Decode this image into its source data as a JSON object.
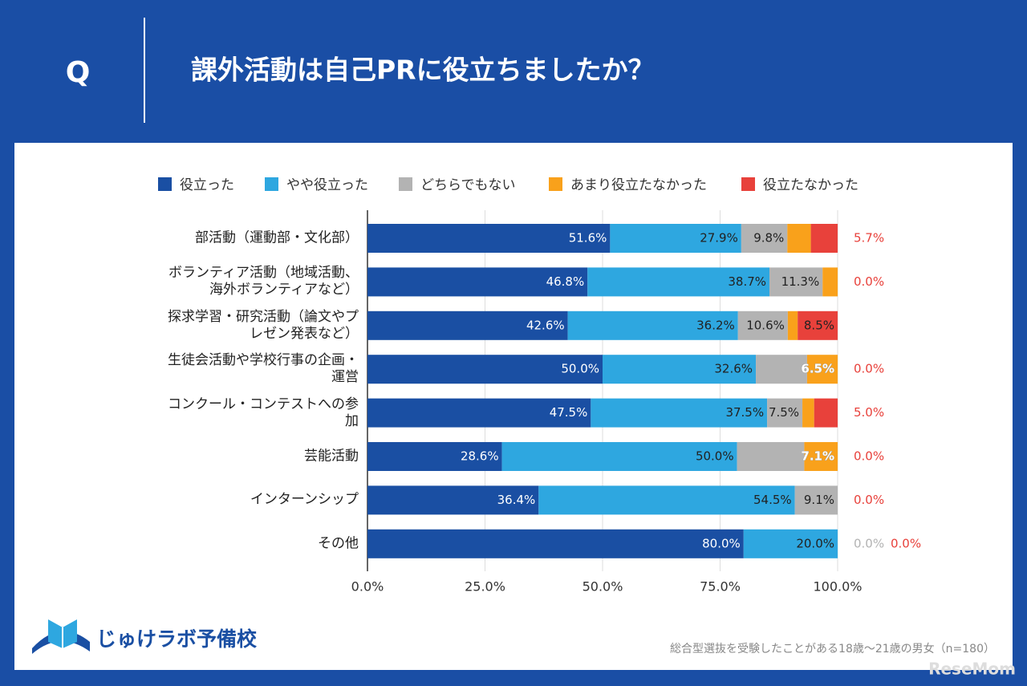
{
  "header": {
    "q": "Q",
    "title": "課外活動は自己PRに役立ちましたか？"
  },
  "chart_data": {
    "type": "bar",
    "orientation": "horizontal",
    "stacked": true,
    "categories": [
      "部活動（運動部・文化部）",
      "ボランティア活動（地域活動、\n海外ボランティアなど）",
      "探求学習・研究活動（論文やプ\nレゼン発表など）",
      "生徒会活動や学校行事の企画・\n運営",
      "コンクール・コンテストへの参\n加",
      "芸能活動",
      "インターンシップ",
      "その他"
    ],
    "series": [
      {
        "name": "役立った",
        "color": "#1a4fa3",
        "values": [
          51.6,
          46.8,
          42.6,
          50.0,
          47.5,
          28.6,
          36.4,
          80.0
        ],
        "value_labels": [
          "51.6%",
          "46.8%",
          "42.6%",
          "50.0%",
          "47.5%",
          "28.6%",
          "36.4%",
          "80.0%"
        ]
      },
      {
        "name": "やや役立った",
        "color": "#2ea7e0",
        "values": [
          27.9,
          38.7,
          36.2,
          32.6,
          37.5,
          50.0,
          54.5,
          20.0
        ],
        "value_labels": [
          "27.9%",
          "38.7%",
          "36.2%",
          "32.6%",
          "37.5%",
          "50.0%",
          "54.5%",
          "20.0%"
        ]
      },
      {
        "name": "どちらでもない",
        "color": "#b3b3b3",
        "values": [
          9.8,
          11.3,
          10.6,
          10.9,
          7.5,
          14.3,
          9.1,
          0.0
        ],
        "value_labels": [
          "9.8%",
          "11.3%",
          "10.6%",
          null,
          "7.5%",
          null,
          "9.1%",
          "0.0%"
        ]
      },
      {
        "name": "あまり役立たなかった",
        "color": "#f9a11b",
        "values": [
          5.0,
          3.2,
          2.1,
          6.5,
          2.5,
          7.1,
          0,
          0
        ],
        "value_labels": [
          null,
          null,
          null,
          "6.5%",
          null,
          "7.1%",
          null,
          null
        ]
      },
      {
        "name": "役立たなかった",
        "color": "#e8413b",
        "values": [
          5.7,
          0.0,
          8.5,
          0.0,
          5.0,
          0.0,
          0.0,
          0.0
        ],
        "value_labels": [
          "5.7%",
          "0.0%",
          "8.5%",
          "0.0%",
          "5.0%",
          "0.0%",
          "0.0%",
          "0.0%"
        ]
      }
    ],
    "xlim": [
      0,
      100
    ],
    "xticks": [
      {
        "value": 0,
        "label": "0.0%"
      },
      {
        "value": 25,
        "label": "25.0%"
      },
      {
        "value": 50,
        "label": "50.0%"
      },
      {
        "value": 75,
        "label": "75.0%"
      },
      {
        "value": 100,
        "label": "100.0%"
      }
    ],
    "grid": true,
    "legend": "top"
  },
  "footer": {
    "logo": "じゅけラボ予備校",
    "note": "総合型選抜を受験したことがある18歳～21歳の男女（n=180）",
    "watermark": "ReseMom"
  }
}
